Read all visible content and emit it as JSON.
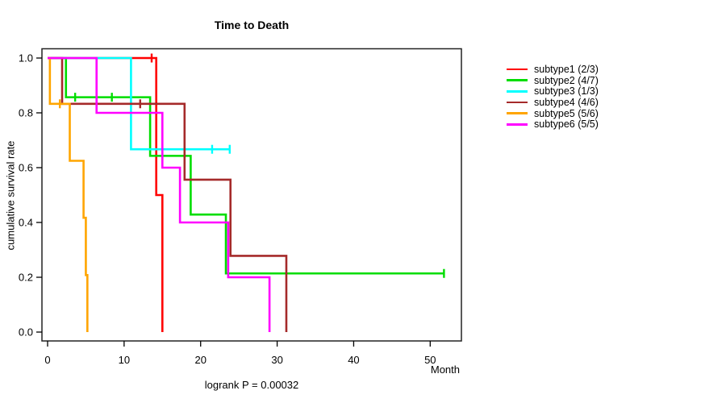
{
  "figure": {
    "background": "#FFFFFF"
  },
  "chart_data": {
    "type": "line",
    "variant": "kaplan-meier-step",
    "title": "Time to Death",
    "xlabel": "Month",
    "ylabel": "cumulative survival rate",
    "footnote": "logrank P = 0.00032",
    "xlim": [
      0,
      54
    ],
    "ylim": [
      0.0,
      1.0
    ],
    "xticks": [
      0,
      10,
      20,
      30,
      40,
      50
    ],
    "yticks": [
      0.0,
      0.2,
      0.4,
      0.6,
      0.8,
      1.0
    ],
    "grid": false,
    "legend_position": "right-outside",
    "series": [
      {
        "name": "subtype1 (2/3)",
        "color": "#FF0000",
        "start": [
          0,
          1.0
        ],
        "steps": [
          [
            14.2,
            0.5
          ],
          [
            15.0,
            0.0
          ]
        ],
        "end_month": 15.0,
        "censors": [
          [
            13.6,
            1.0
          ]
        ]
      },
      {
        "name": "subtype2 (4/7)",
        "color": "#00DD00",
        "start": [
          0,
          1.0
        ],
        "steps": [
          [
            2.4,
            0.857
          ],
          [
            13.4,
            0.643
          ],
          [
            18.7,
            0.429
          ],
          [
            23.3,
            0.214
          ]
        ],
        "end_month": 51.8,
        "censors": [
          [
            3.6,
            0.857
          ],
          [
            8.4,
            0.857
          ],
          [
            51.8,
            0.214
          ]
        ]
      },
      {
        "name": "subtype3 (1/3)",
        "color": "#00FFFF",
        "start": [
          0,
          1.0
        ],
        "steps": [
          [
            10.9,
            0.667
          ]
        ],
        "end_month": 23.8,
        "censors": [
          [
            21.5,
            0.667
          ],
          [
            23.8,
            0.667
          ]
        ]
      },
      {
        "name": "subtype4 (4/6)",
        "color": "#A52A2A",
        "start": [
          0,
          1.0
        ],
        "steps": [
          [
            1.9,
            0.833
          ],
          [
            17.9,
            0.556
          ],
          [
            23.9,
            0.278
          ],
          [
            31.2,
            0.0
          ]
        ],
        "end_month": 31.2,
        "censors": [
          [
            12.1,
            0.833
          ]
        ]
      },
      {
        "name": "subtype5 (5/6)",
        "color": "#FFA500",
        "start": [
          0,
          1.0
        ],
        "steps": [
          [
            0.3,
            0.833
          ],
          [
            2.9,
            0.625
          ],
          [
            4.7,
            0.417
          ],
          [
            5.0,
            0.208
          ],
          [
            5.2,
            0.0
          ]
        ],
        "end_month": 5.2,
        "censors": [
          [
            1.6,
            0.833
          ]
        ]
      },
      {
        "name": "subtype6 (5/5)",
        "color": "#FF00FF",
        "start": [
          0,
          1.0
        ],
        "steps": [
          [
            6.4,
            0.8
          ],
          [
            15.0,
            0.6
          ],
          [
            17.3,
            0.4
          ],
          [
            23.6,
            0.2
          ],
          [
            29.0,
            0.0
          ]
        ],
        "end_month": 29.0,
        "censors": []
      }
    ]
  }
}
